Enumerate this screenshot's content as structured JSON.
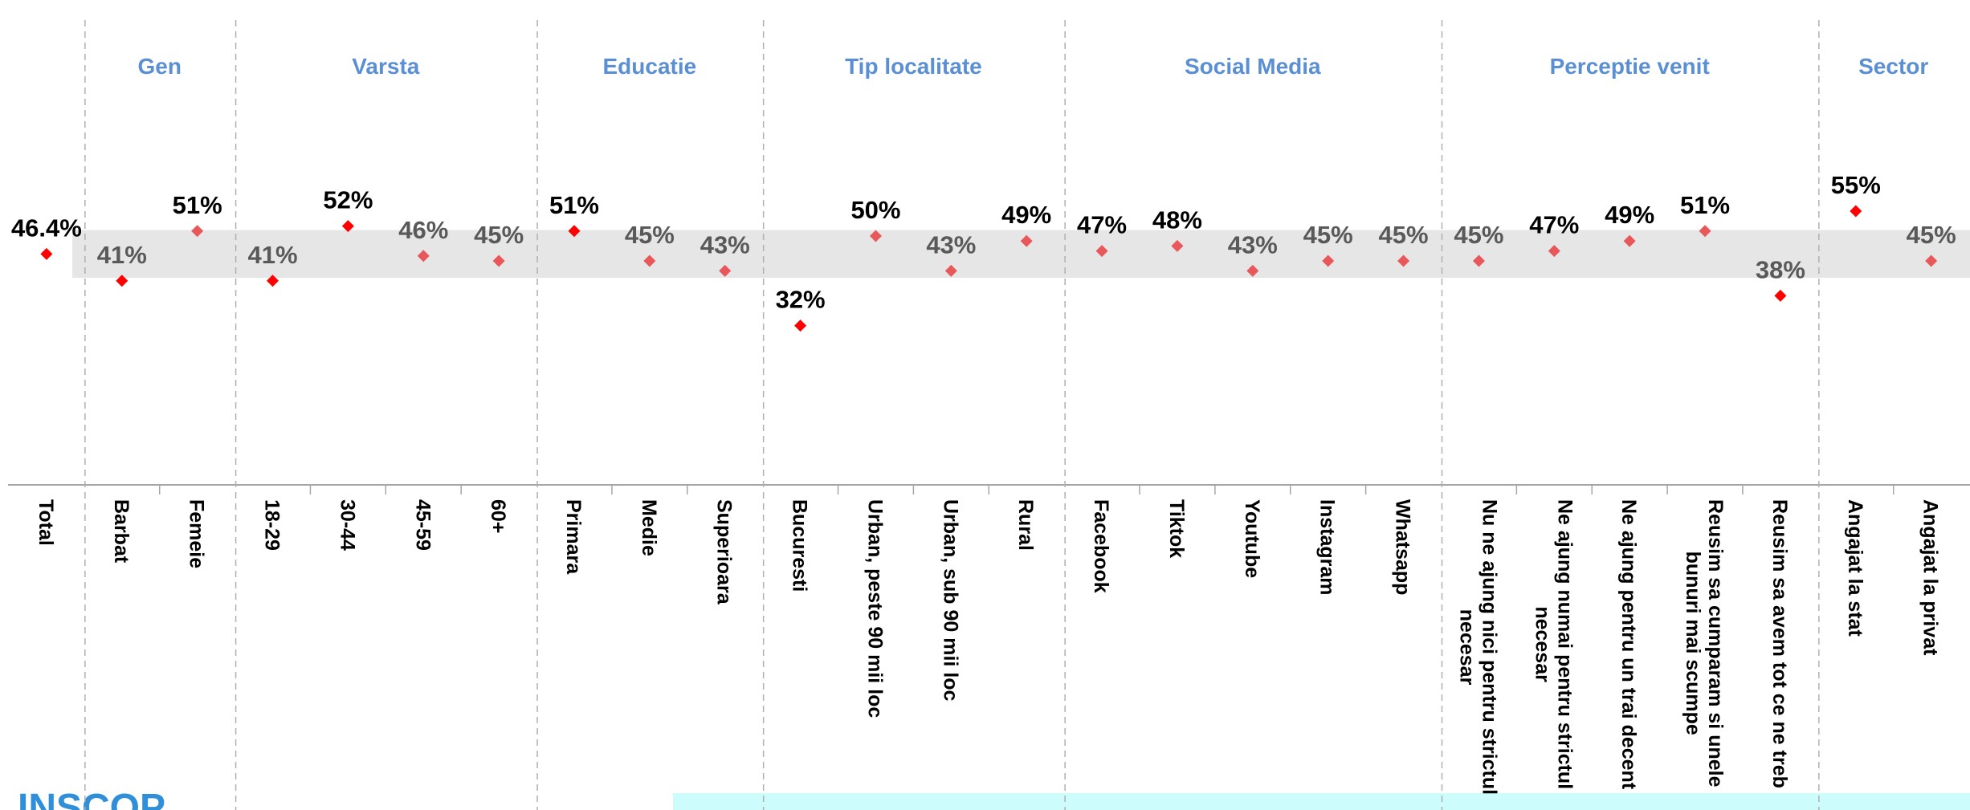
{
  "chart_data": {
    "type": "dot",
    "ylim": [
      0,
      100
    ],
    "reference_band": [
      41.6,
      51.2
    ],
    "band_color": "#e6e6e6",
    "total": {
      "category": "Total",
      "value": 46.4,
      "value_label": "46.4%",
      "marker_color": "#ff0000",
      "label_color": "#000000"
    },
    "groups": [
      {
        "name": "Gen",
        "categories": [
          "Barbat",
          "Femeie"
        ],
        "values": [
          41,
          51
        ],
        "value_labels": [
          "41%",
          "51%"
        ],
        "marker_colors": [
          "#ff0000",
          "#e8585a"
        ],
        "label_colors": [
          "#595959",
          "#000000"
        ]
      },
      {
        "name": "Varsta",
        "categories": [
          "18-29",
          "30-44",
          "45-59",
          "60+"
        ],
        "values": [
          41,
          52,
          46,
          45
        ],
        "value_labels": [
          "41%",
          "52%",
          "46%",
          "45%"
        ],
        "marker_colors": [
          "#ff0000",
          "#ff0000",
          "#e8585a",
          "#e8585a"
        ],
        "label_colors": [
          "#595959",
          "#000000",
          "#595959",
          "#595959"
        ]
      },
      {
        "name": "Educatie",
        "categories": [
          "Primara",
          "Medie",
          "Superioara"
        ],
        "values": [
          51,
          45,
          43
        ],
        "value_labels": [
          "51%",
          "45%",
          "43%"
        ],
        "marker_colors": [
          "#ff0000",
          "#e8585a",
          "#e8585a"
        ],
        "label_colors": [
          "#000000",
          "#595959",
          "#595959"
        ]
      },
      {
        "name": "Tip localitate",
        "categories": [
          "Bucuresti",
          "Urban, peste 90 mii loc",
          "Urban, sub 90 mii loc",
          "Rural"
        ],
        "values": [
          32,
          50,
          43,
          49
        ],
        "value_labels": [
          "32%",
          "50%",
          "43%",
          "49%"
        ],
        "marker_colors": [
          "#ff0000",
          "#e8585a",
          "#e8585a",
          "#e8585a"
        ],
        "label_colors": [
          "#000000",
          "#000000",
          "#595959",
          "#000000"
        ]
      },
      {
        "name": "Social Media",
        "categories": [
          "Facebook",
          "Tiktok",
          "Youtube",
          "Instagram",
          "Whatsapp"
        ],
        "values": [
          47,
          48,
          43,
          45,
          45
        ],
        "value_labels": [
          "47%",
          "48%",
          "43%",
          "45%",
          "45%"
        ],
        "marker_colors": [
          "#e8585a",
          "#e8585a",
          "#e8585a",
          "#e8585a",
          "#e8585a"
        ],
        "label_colors": [
          "#000000",
          "#000000",
          "#595959",
          "#595959",
          "#595959"
        ]
      },
      {
        "name": "Perceptie venit",
        "categories": [
          "Nu ne ajung nici pentru strictul necesar",
          "Ne ajung numai pentru strictul necesar",
          "Ne ajung pentru un trai decent",
          "Reusim sa cumparam si unele bunuri mai scumpe",
          "Reusim sa avem tot ce ne treb"
        ],
        "values": [
          45,
          47,
          49,
          51,
          38
        ],
        "value_labels": [
          "45%",
          "47%",
          "49%",
          "51%",
          "38%"
        ],
        "marker_colors": [
          "#e8585a",
          "#e8585a",
          "#e8585a",
          "#e8585a",
          "#ff0000"
        ],
        "label_colors": [
          "#595959",
          "#000000",
          "#000000",
          "#000000",
          "#595959"
        ]
      },
      {
        "name": "Sector",
        "categories": [
          "Angajat la stat",
          "Angajat la privat"
        ],
        "values": [
          55,
          45
        ],
        "value_labels": [
          "55%",
          "45%"
        ],
        "marker_colors": [
          "#ff0000",
          "#e8585a"
        ],
        "label_colors": [
          "#000000",
          "#595959"
        ]
      }
    ]
  },
  "footer": {
    "logo": "INSCOP"
  }
}
